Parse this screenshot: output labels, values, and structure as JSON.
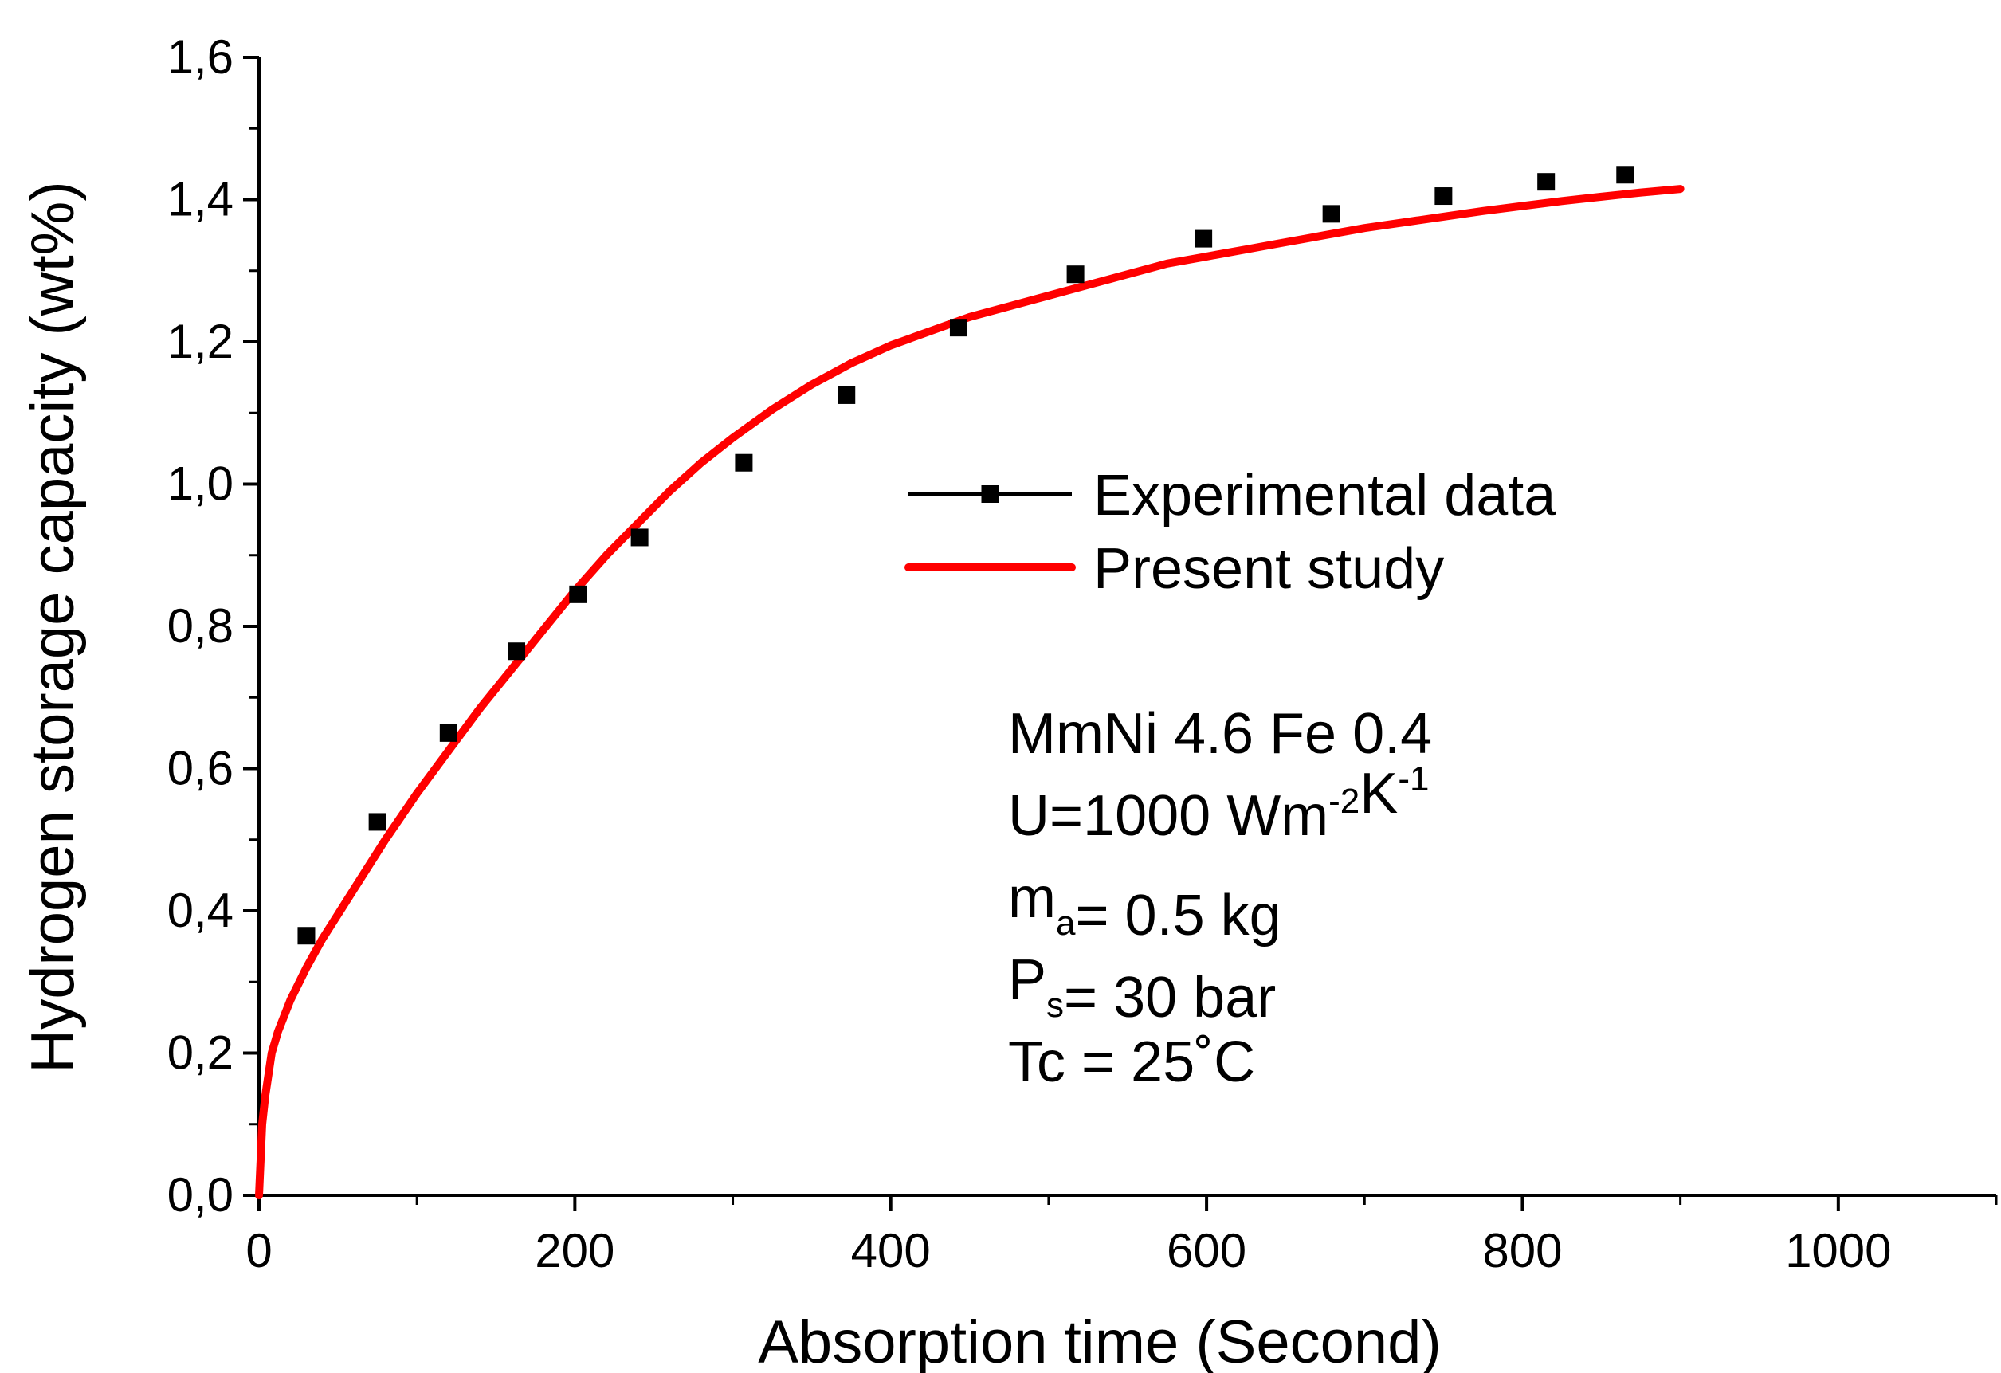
{
  "chart_data": {
    "type": "line",
    "title": "",
    "xlabel": "Absorption time (Second)",
    "ylabel": "Hydrogen storage capacity (wt%)",
    "xlim": [
      0,
      1100
    ],
    "ylim": [
      0,
      1.6
    ],
    "xticks": [
      0,
      200,
      400,
      600,
      800,
      1000
    ],
    "xtick_labels": [
      "0",
      "200",
      "400",
      "600",
      "800",
      "1000"
    ],
    "yticks": [
      0,
      0.2,
      0.4,
      0.6,
      0.8,
      1.0,
      1.2,
      1.4,
      1.6
    ],
    "ytick_labels": [
      "0,0",
      "0,2",
      "0,4",
      "0,6",
      "0,8",
      "1,0",
      "1,2",
      "1,4",
      "1,6"
    ],
    "grid": false,
    "legend_position": "center-right",
    "series": [
      {
        "name": "Experimental data",
        "kind": "scatter",
        "color": "#000000",
        "x": [
          30,
          75,
          120,
          163,
          202,
          241,
          307,
          372,
          443,
          517,
          598,
          679,
          750,
          815,
          865
        ],
        "y": [
          0.365,
          0.525,
          0.65,
          0.765,
          0.845,
          0.925,
          1.03,
          1.125,
          1.22,
          1.295,
          1.345,
          1.38,
          1.405,
          1.425,
          1.435
        ]
      },
      {
        "name": "Present study",
        "kind": "line",
        "color": "#ff0000",
        "x": [
          0,
          2,
          4,
          6,
          8,
          12,
          20,
          30,
          40,
          50,
          60,
          80,
          100,
          120,
          140,
          160,
          180,
          200,
          220,
          240,
          260,
          280,
          300,
          325,
          350,
          375,
          400,
          425,
          450,
          475,
          500,
          525,
          550,
          575,
          600,
          625,
          650,
          675,
          700,
          725,
          750,
          775,
          800,
          825,
          850,
          875,
          900
        ],
        "y": [
          0.0,
          0.1,
          0.14,
          0.17,
          0.2,
          0.23,
          0.275,
          0.32,
          0.36,
          0.395,
          0.43,
          0.5,
          0.565,
          0.625,
          0.685,
          0.74,
          0.795,
          0.85,
          0.9,
          0.945,
          0.99,
          1.03,
          1.065,
          1.105,
          1.14,
          1.17,
          1.195,
          1.215,
          1.235,
          1.25,
          1.265,
          1.28,
          1.295,
          1.31,
          1.32,
          1.33,
          1.34,
          1.35,
          1.36,
          1.368,
          1.376,
          1.384,
          1.391,
          1.398,
          1.404,
          1.41,
          1.415
        ]
      }
    ],
    "annotation_lines": [
      {
        "parts": [
          {
            "text": "MmNi 4.6 Fe 0.4",
            "style": "normal"
          }
        ]
      },
      {
        "parts": [
          {
            "text": "U=1000 Wm",
            "style": "normal"
          },
          {
            "text": "-2",
            "style": "sup"
          },
          {
            "text": "K",
            "style": "normal"
          },
          {
            "text": "-1",
            "style": "sup"
          }
        ]
      },
      {
        "parts": [
          {
            "text": "m",
            "style": "normal"
          },
          {
            "text": "a",
            "style": "sub"
          },
          {
            "text": "= 0.5 kg",
            "style": "normal"
          }
        ]
      },
      {
        "parts": [
          {
            "text": "P",
            "style": "normal"
          },
          {
            "text": "s",
            "style": "sub"
          },
          {
            "text": "= 30 bar",
            "style": "normal"
          }
        ]
      },
      {
        "parts": [
          {
            "text": "Tc = 25˚C",
            "style": "normal"
          }
        ]
      }
    ]
  }
}
